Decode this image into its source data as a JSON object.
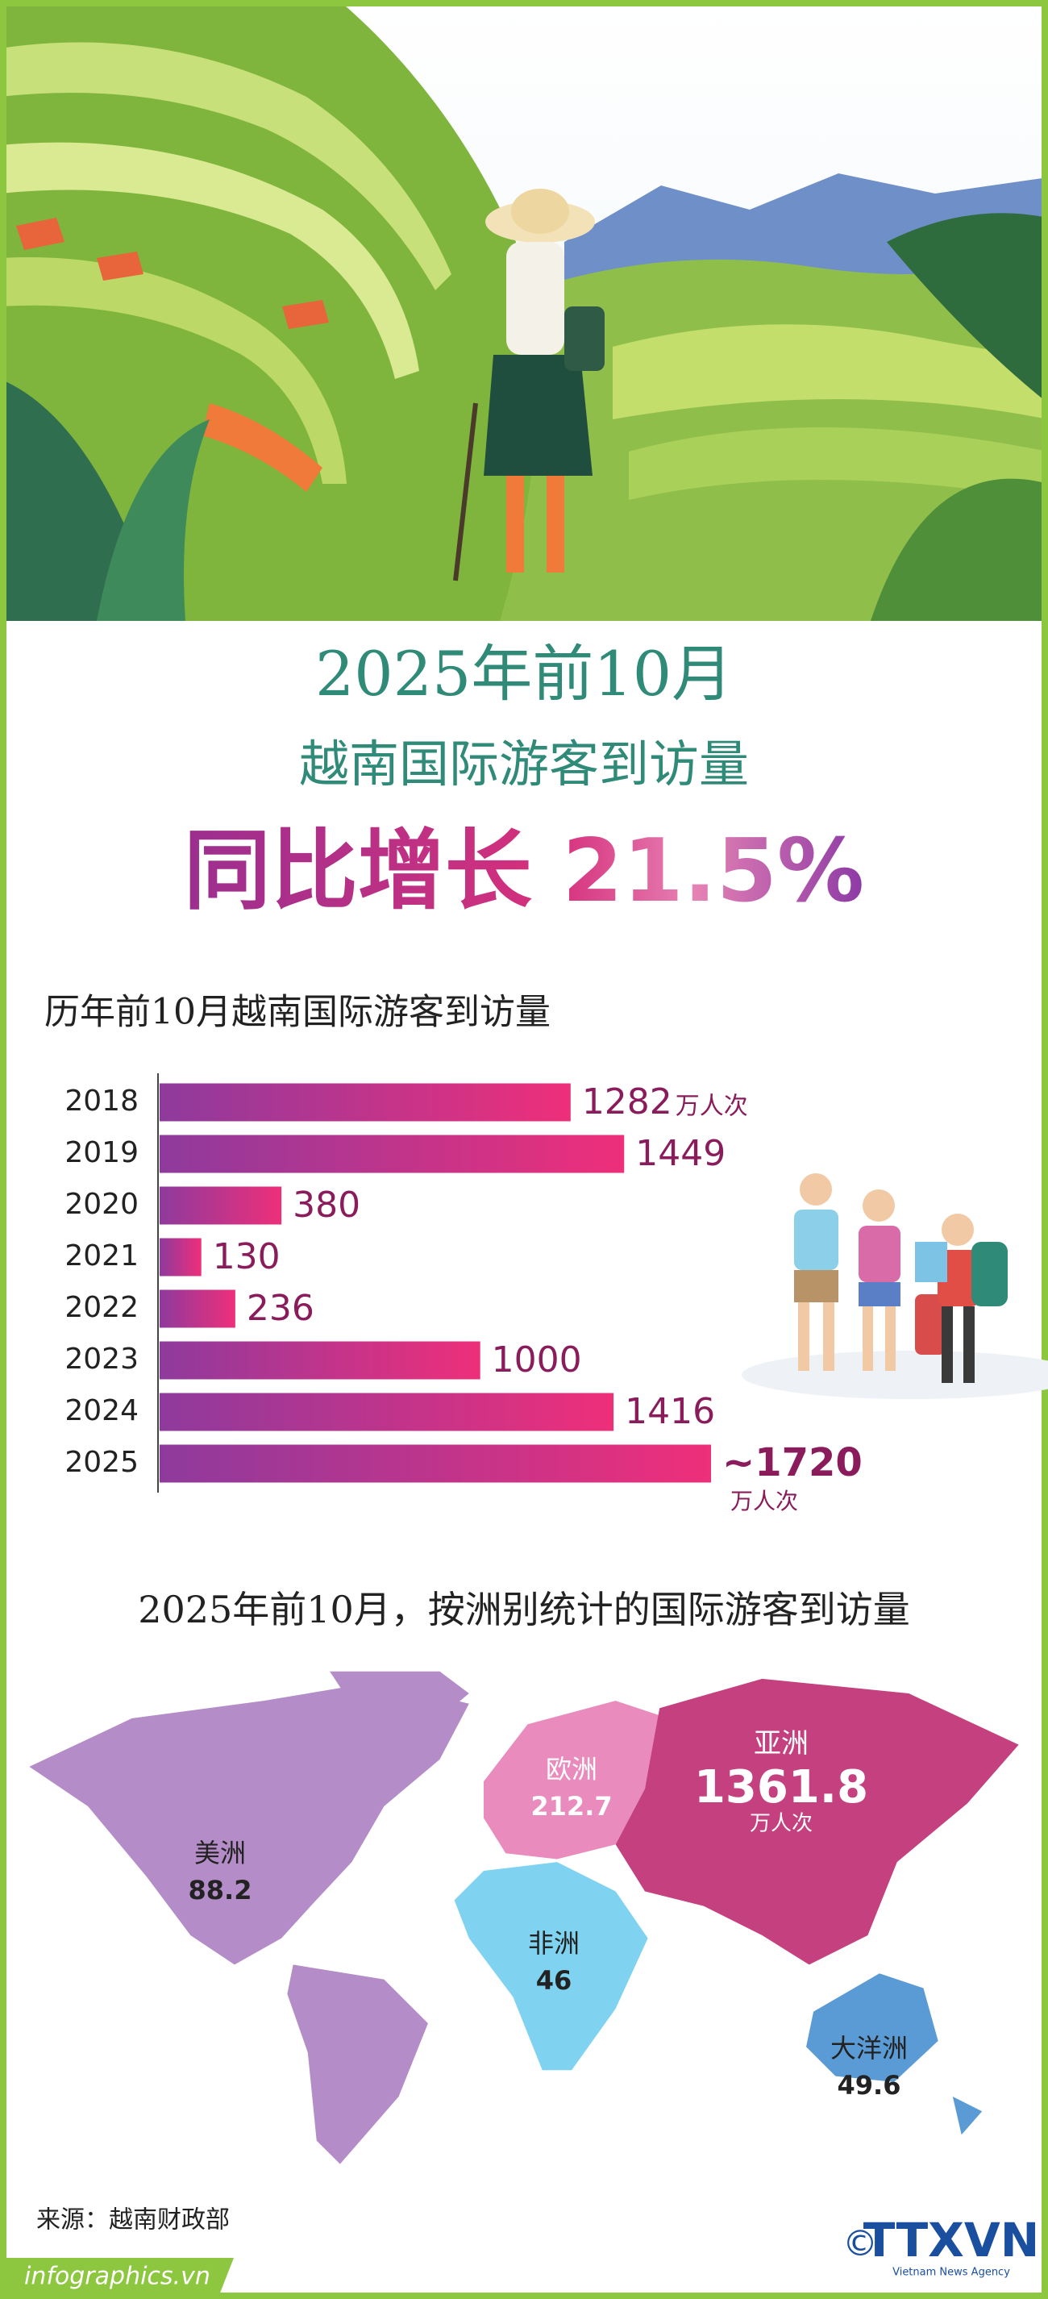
{
  "header": {
    "period": "2025年前10月",
    "subject": "越南国际游客到访量",
    "headline": "同比增长 21.5%"
  },
  "chart_data": {
    "type": "bar",
    "orientation": "horizontal",
    "title": "历年前10月越南国际游客到访量",
    "unit": "万人次",
    "categories": [
      "2018",
      "2019",
      "2020",
      "2021",
      "2022",
      "2023",
      "2024",
      "2025"
    ],
    "values": [
      1282,
      1449,
      380,
      130,
      236,
      1000,
      1416,
      1720
    ],
    "value_labels": [
      "1282",
      "1449",
      "380",
      "130",
      "236",
      "1000",
      "1416",
      "~1720"
    ],
    "color_start": "#8e3a9d",
    "color_end": "#ee2f7a",
    "label_color": "#8a1c5c"
  },
  "map": {
    "title": "2025年前10月，按洲别统计的国际游客到访量",
    "regions": [
      {
        "name": "美洲",
        "value": 88.2
      },
      {
        "name": "欧洲",
        "value": 212.7
      },
      {
        "name": "亚洲",
        "value": 1361.8,
        "unit": "万人次"
      },
      {
        "name": "非洲",
        "value": 46
      },
      {
        "name": "大洋洲",
        "value": 49.6
      }
    ]
  },
  "footer": {
    "source": "来源：越南财政部",
    "site": "infographics.vn",
    "copyright": "©",
    "logo": "TTXVN",
    "agency": "Vietnam News Agency"
  }
}
